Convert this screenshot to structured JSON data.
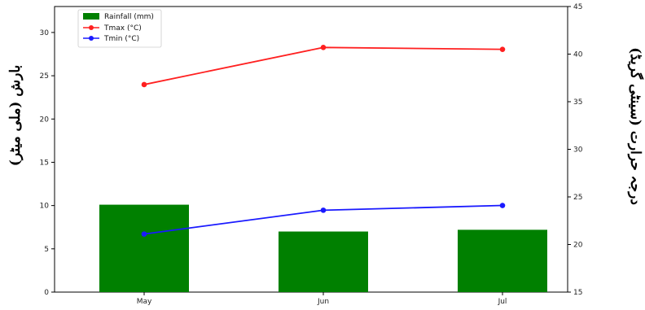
{
  "chart_data": {
    "type": "bar+line",
    "categories": [
      "May",
      "Jun",
      "Jul"
    ],
    "series": [
      {
        "name": "Rainfall (mm)",
        "kind": "bar",
        "axis": "left",
        "color": "#008000",
        "values": [
          10.1,
          7.0,
          7.2
        ]
      },
      {
        "name": "Tmax (°C)",
        "kind": "line",
        "axis": "right",
        "color": "#ff2020",
        "marker": "circle",
        "values": [
          36.8,
          40.7,
          40.5
        ]
      },
      {
        "name": "Tmin (°C)",
        "kind": "line",
        "axis": "right",
        "color": "#1a1aff",
        "marker": "circle",
        "values": [
          21.1,
          23.6,
          24.1
        ]
      }
    ],
    "ylabel_left": "بارش (ملی میٹر)",
    "ylabel_right": "درجہ حرارت (سینٹی گریڈ)",
    "ylim_left": [
      0,
      33
    ],
    "yticks_left": [
      0,
      5,
      10,
      15,
      20,
      25,
      30
    ],
    "ylim_right": [
      15,
      45
    ],
    "yticks_right": [
      15,
      20,
      25,
      30,
      35,
      40,
      45
    ],
    "legend_position": "top-left",
    "grid": false
  }
}
